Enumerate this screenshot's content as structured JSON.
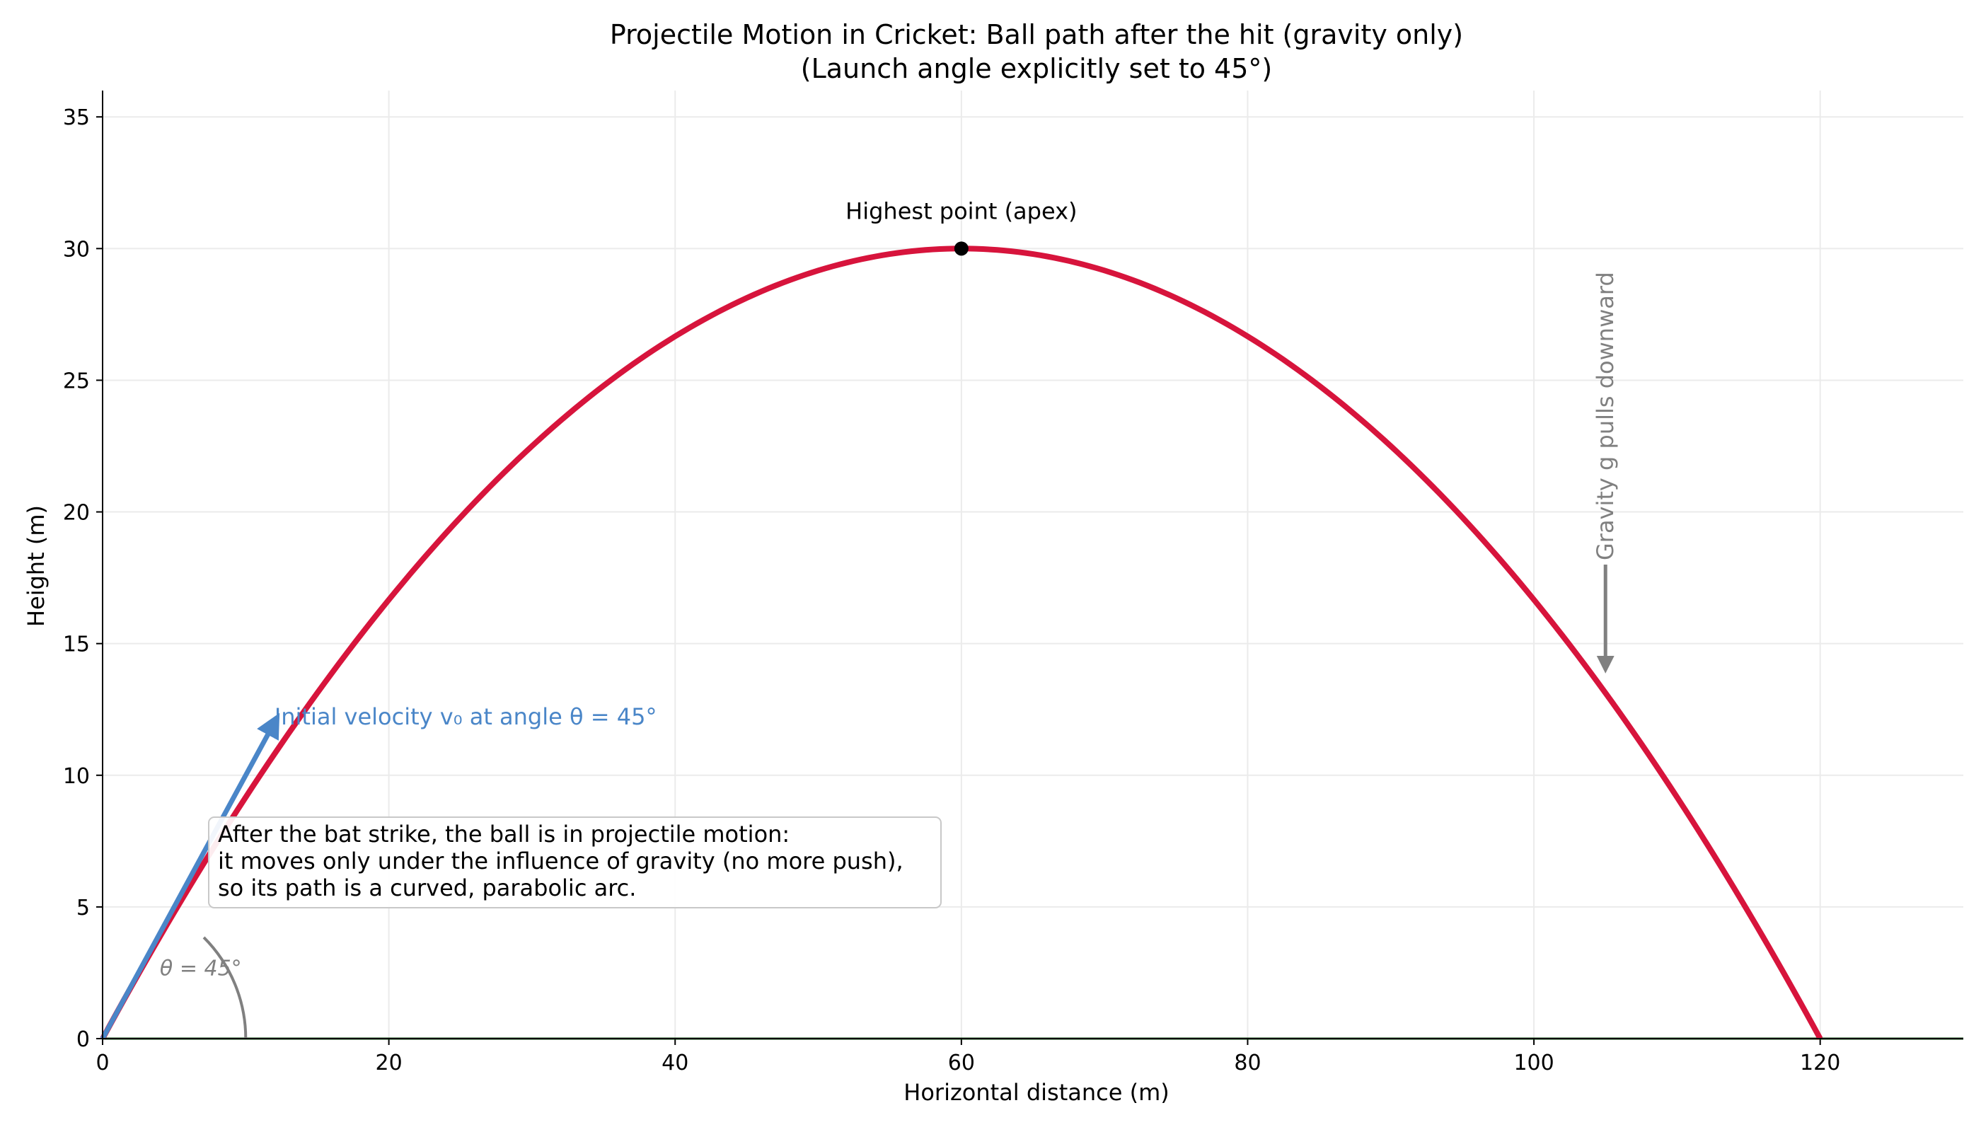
{
  "chart_data": {
    "type": "line",
    "title": "Projectile Motion in Cricket: Ball path after the hit (gravity only)",
    "subtitle": "(Launch angle explicitly set to 45°)",
    "xlabel": "Horizontal distance (m)",
    "ylabel": "Height (m)",
    "xlim": [
      0,
      130
    ],
    "ylim": [
      0,
      36
    ],
    "xticks": [
      0,
      20,
      40,
      60,
      80,
      100,
      120
    ],
    "yticks": [
      0,
      5,
      10,
      15,
      20,
      25,
      30,
      35
    ],
    "grid": true,
    "colors": {
      "trajectory": "#d7143c",
      "velocity": "#4a86c8",
      "angle": "#808080",
      "gravity": "#808080",
      "ground": "#1a5c1a",
      "apex": "#000000"
    },
    "series": [
      {
        "x": [
          0,
          10,
          20,
          30,
          40,
          50,
          60,
          70,
          80,
          90,
          100,
          110,
          120
        ],
        "y": [
          0,
          9.17,
          16.67,
          22.5,
          26.67,
          29.17,
          30,
          29.17,
          26.67,
          22.5,
          16.67,
          9.17,
          0
        ]
      }
    ],
    "ground_line": {
      "y": 0
    },
    "apex": {
      "x": 60,
      "y": 30,
      "label": "Highest point (apex)"
    },
    "velocity_arrow": {
      "from": [
        0,
        0
      ],
      "to": [
        12.2,
        12.2
      ],
      "label": "Initial velocity v₀ at angle θ = 45°"
    },
    "angle_arc": {
      "radius": 10,
      "degrees": 45,
      "label": "θ = 45°"
    },
    "gravity_arrow": {
      "x": 105,
      "from_y": 18,
      "to_y": 14,
      "label": "Gravity g pulls downward"
    },
    "annotation_box": {
      "lines": [
        "After the bat strike, the ball is in projectile motion:",
        "it moves only under the influence of gravity (no more push),",
        "so its path is a curved, parabolic arc."
      ]
    }
  }
}
